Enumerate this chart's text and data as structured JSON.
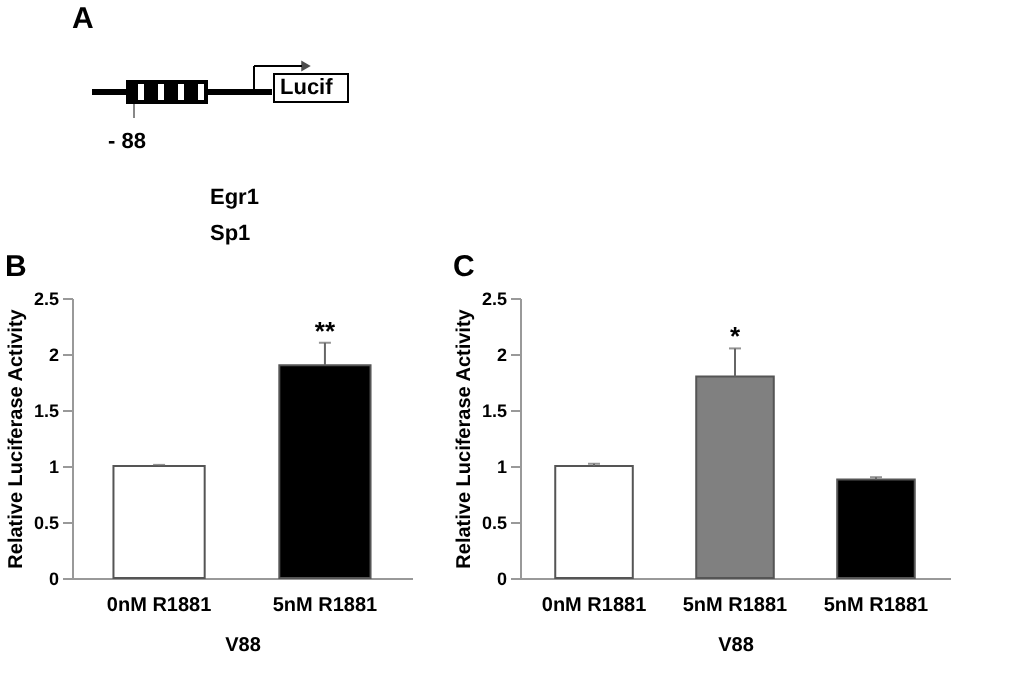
{
  "chart_data": [
    {
      "type": "other",
      "title": "A",
      "annotations": [
        "Lucif",
        "- 88",
        "Egr1",
        "Sp1"
      ]
    },
    {
      "type": "bar",
      "title": "B",
      "ylabel": "Relative Luciferase Activity",
      "xlabel": "V88",
      "categories": [
        "0nM R1881",
        "5nM R1881"
      ],
      "values": [
        1.0,
        1.9
      ],
      "errors": [
        0.01,
        0.2
      ],
      "colors": [
        "#ffffff",
        "#000000"
      ],
      "ylim": [
        0,
        2.5
      ],
      "yticks": [
        0,
        0.5,
        1,
        1.5,
        2,
        2.5
      ],
      "grid": false,
      "annotations": [
        {
          "text": "**",
          "x": "5nM R1881",
          "y": 2.2
        }
      ]
    },
    {
      "type": "bar",
      "title": "C",
      "ylabel": "Relative Luciferase Activity",
      "xlabel": "V88",
      "categories": [
        "0nM R1881",
        "5nM R1881",
        "5nM R1881"
      ],
      "values": [
        1.0,
        1.8,
        0.88
      ],
      "errors": [
        0.02,
        0.25,
        0.02
      ],
      "colors": [
        "#ffffff",
        "#808080",
        "#000000"
      ],
      "ylim": [
        0,
        2.5
      ],
      "yticks": [
        0,
        0.5,
        1,
        1.5,
        2,
        2.5
      ],
      "grid": false,
      "annotations": [
        {
          "text": "*",
          "x": "5nM R1881",
          "y": 2.15
        }
      ]
    }
  ]
}
